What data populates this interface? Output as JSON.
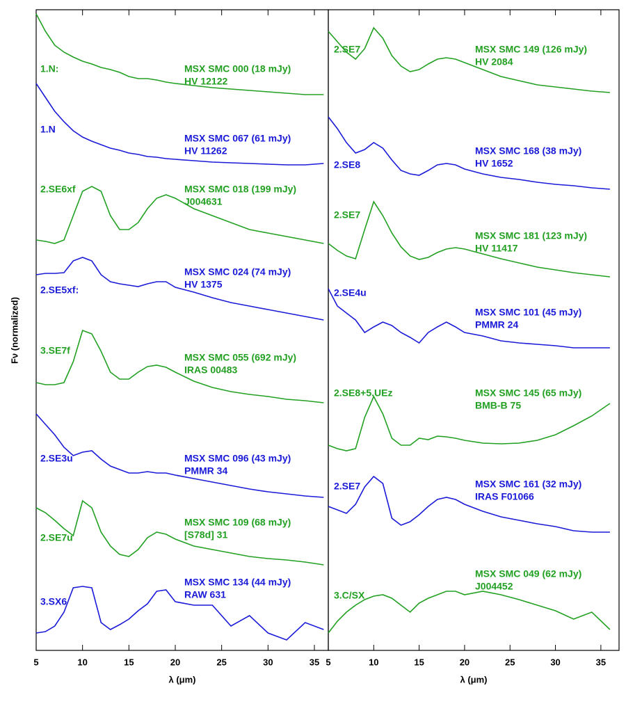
{
  "chart_data": [
    {
      "type": "line",
      "xlabel": "λ (μm)",
      "ylabel": "Fν (normalized)",
      "xlim": [
        5,
        36.5
      ],
      "xticks": [
        5,
        10,
        15,
        20,
        25,
        30,
        35
      ],
      "ylim": [
        0,
        92.1
      ],
      "x": [
        5,
        6,
        7,
        8,
        9,
        10,
        11,
        12,
        13,
        14,
        15,
        16,
        17,
        18,
        19,
        20,
        22,
        24,
        26,
        28,
        30,
        32,
        34,
        36
      ],
      "series": [
        {
          "name": "MSX SMC 000 (18 mJy)",
          "alias": "HV 12122",
          "classification": "1.N:",
          "color": "#22a022",
          "values": [
            91.5,
            89.0,
            87.0,
            86.0,
            85.3,
            84.7,
            84.3,
            83.8,
            83.5,
            83.1,
            82.5,
            82.2,
            82.2,
            82.0,
            81.7,
            81.5,
            81.2,
            80.9,
            80.7,
            80.5,
            80.3,
            80.1,
            79.9,
            79.9
          ]
        },
        {
          "name": "MSX SMC 067 (61 mJy)",
          "alias": "HV 11262",
          "classification": "1.N",
          "color": "#1a1ad8",
          "values": [
            81.5,
            79.5,
            77.5,
            76.0,
            74.7,
            73.8,
            73.2,
            72.7,
            72.2,
            71.9,
            71.5,
            71.3,
            71.0,
            70.9,
            70.7,
            70.6,
            70.4,
            70.2,
            70.1,
            70.0,
            69.9,
            69.8,
            69.8,
            70.0
          ]
        },
        {
          "name": "MSX SMC 018 (199 mJy)",
          "alias": "J004631",
          "classification": "2.SE6xf",
          "color": "#22a022",
          "values": [
            59.0,
            58.8,
            58.5,
            59.0,
            62.5,
            66.0,
            66.7,
            66.0,
            62.5,
            60.5,
            60.5,
            61.5,
            63.5,
            65.0,
            65.5,
            65.0,
            63.5,
            62.5,
            61.5,
            60.5,
            60.0,
            59.5,
            59.0,
            58.5
          ]
        },
        {
          "name": "MSX SMC 024 (74 mJy)",
          "alias": "HV 1375",
          "classification": "2.SE5xf:",
          "color": "#1a1ad8",
          "values": [
            54.0,
            54.2,
            54.2,
            54.3,
            56.0,
            56.5,
            56.0,
            54.0,
            53.0,
            52.7,
            52.5,
            52.3,
            52.7,
            53.0,
            53.0,
            52.2,
            51.5,
            50.7,
            50.0,
            49.5,
            49.0,
            48.5,
            48.0,
            47.5
          ]
        },
        {
          "name": "MSX SMC 055 (692 mJy)",
          "alias": "IRAS 00483",
          "classification": "3.SE7f",
          "color": "#22a022",
          "values": [
            38.5,
            38.2,
            38.2,
            38.5,
            41.5,
            46.0,
            45.5,
            43.0,
            40.0,
            39.0,
            39.0,
            40.0,
            40.8,
            41.0,
            40.7,
            40.0,
            38.7,
            37.8,
            37.2,
            36.8,
            36.5,
            36.1,
            35.9,
            35.6
          ]
        },
        {
          "name": "MSX SMC 096 (43 mJy)",
          "alias": "PMMR 34",
          "classification": "2.SE3u",
          "color": "#1a1ad8",
          "values": [
            34.0,
            32.5,
            31.0,
            29.2,
            28.0,
            28.5,
            28.7,
            27.5,
            26.5,
            26.0,
            25.5,
            25.5,
            25.7,
            25.5,
            25.5,
            25.2,
            24.7,
            24.2,
            23.7,
            23.2,
            22.8,
            22.5,
            22.2,
            22.0
          ]
        },
        {
          "name": "MSX SMC 109 (68 mJy)",
          "alias": "[S78d] 31",
          "classification": "2.SE7u",
          "color": "#22a022",
          "values": [
            20.5,
            19.8,
            18.7,
            17.5,
            16.5,
            21.5,
            20.5,
            17.0,
            15.0,
            13.8,
            13.5,
            14.5,
            16.2,
            17.0,
            16.7,
            16.0,
            15.0,
            14.5,
            14.0,
            13.5,
            13.2,
            13.0,
            12.7,
            12.3
          ]
        },
        {
          "name": "MSX SMC 134 (44 mJy)",
          "alias": "RAW 631",
          "classification": "3.SX6",
          "color": "#1a1ad8",
          "values": [
            2.5,
            2.7,
            3.5,
            5.5,
            9.0,
            9.2,
            9.0,
            4.0,
            3.0,
            3.7,
            4.5,
            5.7,
            6.7,
            8.5,
            8.7,
            7.0,
            6.5,
            6.5,
            3.5,
            5.0,
            2.5,
            1.5,
            4.0,
            3.0
          ]
        }
      ]
    },
    {
      "type": "line",
      "xlabel": "λ (μm)",
      "xlim": [
        5,
        37
      ],
      "xticks": [
        5,
        10,
        15,
        20,
        25,
        30,
        35
      ],
      "ylim": [
        0,
        92.1
      ],
      "x": [
        5,
        6,
        7,
        8,
        9,
        10,
        11,
        12,
        13,
        14,
        15,
        16,
        17,
        18,
        19,
        20,
        22,
        24,
        26,
        28,
        30,
        32,
        34,
        36
      ],
      "series": [
        {
          "name": "MSX SMC 149 (126 mJy)",
          "alias": "HV 2084",
          "classification": "2.SE7",
          "color": "#22a022",
          "values": [
            89.0,
            87.5,
            86.0,
            85.0,
            86.5,
            89.5,
            88.0,
            85.5,
            84.0,
            83.2,
            83.5,
            84.3,
            85.0,
            85.2,
            85.0,
            84.5,
            83.5,
            82.5,
            81.9,
            81.3,
            81.0,
            80.7,
            80.4,
            80.2
          ]
        },
        {
          "name": "MSX SMC 168 (38 mJy)",
          "alias": "HV 1652",
          "classification": "2.SE8",
          "color": "#1a1ad8",
          "values": [
            76.7,
            75.0,
            73.0,
            71.5,
            72.0,
            73.0,
            72.2,
            70.5,
            69.0,
            68.5,
            68.3,
            69.0,
            69.8,
            70.0,
            69.8,
            69.2,
            68.5,
            68.0,
            67.7,
            67.3,
            67.0,
            66.8,
            66.5,
            66.3
          ]
        },
        {
          "name": "MSX SMC 181 (123 mJy)",
          "alias": "HV 11417",
          "classification": "2.SE7",
          "color": "#22a022",
          "values": [
            58.5,
            57.5,
            56.7,
            56.3,
            60.5,
            64.5,
            62.5,
            60.0,
            58.0,
            56.7,
            56.2,
            56.5,
            57.2,
            57.7,
            57.9,
            57.7,
            57.0,
            56.3,
            55.7,
            55.1,
            54.7,
            54.3,
            54.0,
            53.7
          ]
        },
        {
          "name": "MSX SMC 101 (45 mJy)",
          "alias": "PMMR 24",
          "classification": "2.SE4u",
          "color": "#1a1ad8",
          "values": [
            52.0,
            49.5,
            48.5,
            47.5,
            45.7,
            46.5,
            47.2,
            46.7,
            45.7,
            45.0,
            44.2,
            45.7,
            46.5,
            47.2,
            46.5,
            45.7,
            45.2,
            44.5,
            44.2,
            44.0,
            43.8,
            43.5,
            43.5,
            43.5
          ]
        },
        {
          "name": "MSX SMC 145 (65 mJy)",
          "alias": "BMB-B 75",
          "classification": "2.SE8+5.UEz",
          "color": "#22a022",
          "values": [
            29.5,
            29.0,
            28.7,
            29.0,
            33.5,
            36.5,
            34.0,
            30.5,
            29.5,
            29.5,
            30.5,
            30.3,
            30.8,
            30.7,
            30.5,
            30.2,
            29.8,
            29.7,
            29.8,
            30.2,
            31.0,
            32.3,
            33.7,
            35.5
          ]
        },
        {
          "name": "MSX SMC 161 (32 mJy)",
          "alias": "IRAS F01066",
          "classification": "2.SE7",
          "color": "#1a1ad8",
          "values": [
            20.7,
            20.2,
            19.7,
            21.0,
            23.5,
            25.0,
            24.0,
            19.0,
            18.0,
            18.5,
            19.5,
            20.7,
            21.7,
            22.0,
            21.7,
            21.0,
            20.0,
            19.2,
            18.7,
            18.2,
            17.8,
            17.2,
            17.0,
            17.0
          ]
        },
        {
          "name": "MSX SMC 049 (62 mJy)",
          "alias": "J004452",
          "classification": "3.C/SX",
          "color": "#22a022",
          "values": [
            2.5,
            4.2,
            5.5,
            6.5,
            7.3,
            7.8,
            8.0,
            7.5,
            6.5,
            5.5,
            6.8,
            7.5,
            8.0,
            8.5,
            8.5,
            8.0,
            8.5,
            8.0,
            7.3,
            6.5,
            5.7,
            4.5,
            5.5,
            3.0
          ]
        }
      ]
    }
  ]
}
